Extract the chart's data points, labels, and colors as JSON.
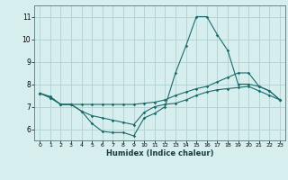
{
  "xlabel": "Humidex (Indice chaleur)",
  "ylabel": "",
  "background_color": "#d7eeee",
  "grid_color": "#b0d0d0",
  "line_color": "#1a6b6b",
  "xlim": [
    -0.5,
    23.5
  ],
  "ylim": [
    5.5,
    11.5
  ],
  "yticks": [
    6,
    7,
    8,
    9,
    10,
    11
  ],
  "xticks": [
    0,
    1,
    2,
    3,
    4,
    5,
    6,
    7,
    8,
    9,
    10,
    11,
    12,
    13,
    14,
    15,
    16,
    17,
    18,
    19,
    20,
    21,
    22,
    23
  ],
  "line1_x": [
    0,
    1,
    2,
    3,
    4,
    5,
    6,
    7,
    8,
    9,
    10,
    11,
    12,
    13,
    14,
    15,
    16,
    17,
    18,
    19,
    20,
    21,
    22,
    23
  ],
  "line1_y": [
    7.6,
    7.4,
    7.1,
    7.1,
    6.8,
    6.25,
    5.9,
    5.85,
    5.85,
    5.7,
    6.5,
    6.7,
    7.0,
    8.5,
    9.7,
    11.0,
    11.0,
    10.2,
    9.5,
    8.0,
    8.0,
    7.9,
    7.7,
    7.3
  ],
  "line2_x": [
    0,
    1,
    2,
    3,
    4,
    5,
    6,
    7,
    8,
    9,
    10,
    11,
    12,
    13,
    14,
    15,
    16,
    17,
    18,
    19,
    20,
    21,
    22,
    23
  ],
  "line2_y": [
    7.6,
    7.45,
    7.1,
    7.1,
    7.1,
    7.1,
    7.1,
    7.1,
    7.1,
    7.1,
    7.15,
    7.2,
    7.3,
    7.5,
    7.65,
    7.8,
    7.9,
    8.1,
    8.3,
    8.5,
    8.5,
    7.9,
    7.7,
    7.3
  ],
  "line3_x": [
    0,
    1,
    2,
    3,
    4,
    5,
    6,
    7,
    8,
    9,
    10,
    11,
    12,
    13,
    14,
    15,
    16,
    17,
    18,
    19,
    20,
    21,
    22,
    23
  ],
  "line3_y": [
    7.6,
    7.4,
    7.1,
    7.1,
    6.8,
    6.6,
    6.5,
    6.4,
    6.3,
    6.2,
    6.75,
    7.0,
    7.1,
    7.15,
    7.3,
    7.5,
    7.65,
    7.75,
    7.8,
    7.85,
    7.9,
    7.7,
    7.5,
    7.3
  ]
}
